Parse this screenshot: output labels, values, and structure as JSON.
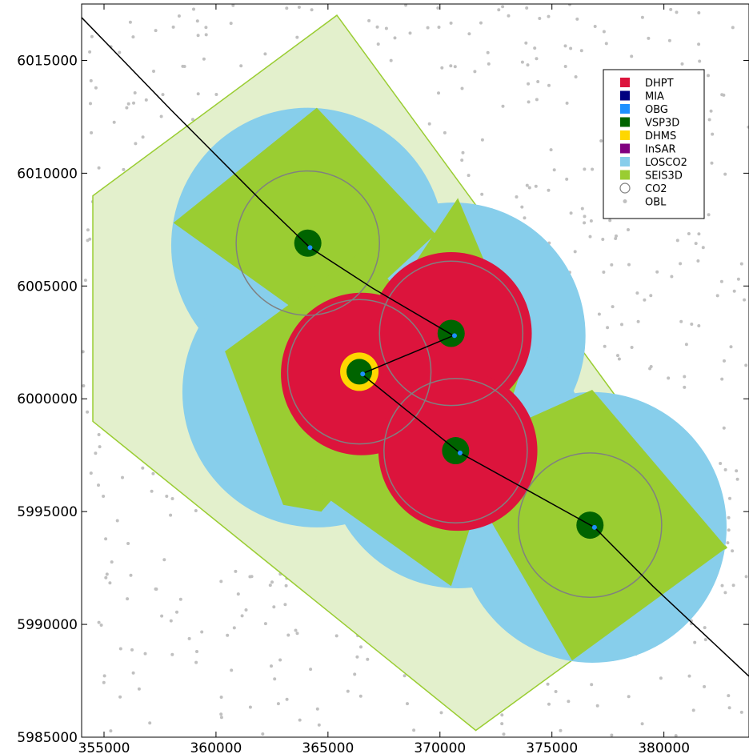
{
  "chart_data": {
    "type": "scatter",
    "title": "",
    "xlabel": "",
    "ylabel": "",
    "xlim": [
      354000,
      383800
    ],
    "ylim": [
      5985000,
      6017500
    ],
    "xticks": [
      355000,
      360000,
      365000,
      370000,
      375000,
      380000
    ],
    "yticks": [
      5985000,
      5990000,
      5995000,
      6000000,
      6005000,
      6010000,
      6015000
    ],
    "grid": false,
    "legend_position": "top-right",
    "colors": {
      "DHPT": "#dc143c",
      "MIA": "#000080",
      "OBG": "#1e90ff",
      "VSP3D": "#006400",
      "DHMS": "#ffd700",
      "InSAR": "#800080",
      "LOSCO2": "#87ceeb",
      "SEIS3D": "#9acd32",
      "CO2": "#808080",
      "OBL": "#c0c0c0"
    },
    "legend": [
      {
        "label": "DHPT",
        "marker": "square",
        "color": "#dc143c"
      },
      {
        "label": "MIA",
        "marker": "square",
        "color": "#000080"
      },
      {
        "label": "OBG",
        "marker": "square",
        "color": "#1e90ff"
      },
      {
        "label": "VSP3D",
        "marker": "square",
        "color": "#006400"
      },
      {
        "label": "DHMS",
        "marker": "square",
        "color": "#ffd700"
      },
      {
        "label": "InSAR",
        "marker": "square",
        "color": "#800080"
      },
      {
        "label": "LOSCO2",
        "marker": "square",
        "color": "#87ceeb"
      },
      {
        "label": "SEIS3D",
        "marker": "square",
        "color": "#9acd32"
      },
      {
        "label": "CO2",
        "marker": "circle",
        "color": "#808080"
      },
      {
        "label": "OBL",
        "marker": "dot",
        "color": "#c0c0c0"
      }
    ],
    "outer_polygon": [
      [
        365400,
        6017000
      ],
      [
        382800,
        5993400
      ],
      [
        371600,
        5985300
      ],
      [
        354500,
        5999000
      ],
      [
        354500,
        6009000
      ]
    ],
    "seis3d_polygons": [
      [
        [
          358100,
          6007800
        ],
        [
          364500,
          6012900
        ],
        [
          369800,
          6007300
        ],
        [
          365000,
          6002900
        ]
      ],
      [
        [
          360400,
          6002100
        ],
        [
          366600,
          6006600
        ],
        [
          370700,
          6001700
        ],
        [
          364700,
          5995000
        ],
        [
          363000,
          5995300
        ]
      ],
      [
        [
          365000,
          6000200
        ],
        [
          370800,
          6008900
        ],
        [
          373800,
          6001800
        ],
        [
          370500,
          5991700
        ],
        [
          364400,
          5996000
        ]
      ],
      [
        [
          370500,
          5997600
        ],
        [
          376800,
          6000400
        ],
        [
          382800,
          5993400
        ],
        [
          375900,
          5988400
        ]
      ]
    ],
    "losco2_circles": [
      {
        "x": 364100,
        "y": 6006800,
        "r": 6100
      },
      {
        "x": 364500,
        "y": 6000300,
        "r": 6000
      },
      {
        "x": 370600,
        "y": 6002800,
        "r": 5900
      },
      {
        "x": 370800,
        "y": 5997500,
        "r": 5900
      },
      {
        "x": 376800,
        "y": 5994300,
        "r": 6000
      }
    ],
    "dhpt_circles": [
      {
        "x": 366500,
        "y": 6001100,
        "r": 3600
      },
      {
        "x": 370500,
        "y": 6002900,
        "r": 3600
      },
      {
        "x": 370800,
        "y": 5997700,
        "r": 3550
      }
    ],
    "co2_circles": [
      {
        "x": 364100,
        "y": 6006900,
        "r": 3200
      },
      {
        "x": 366400,
        "y": 6001200,
        "r": 3200
      },
      {
        "x": 370500,
        "y": 6002900,
        "r": 3200
      },
      {
        "x": 370700,
        "y": 5997700,
        "r": 3200
      },
      {
        "x": 376700,
        "y": 5994400,
        "r": 3200
      }
    ],
    "vsp3d_points": [
      {
        "x": 364100,
        "y": 6006900
      },
      {
        "x": 366400,
        "y": 6001200
      },
      {
        "x": 370500,
        "y": 6002900
      },
      {
        "x": 370700,
        "y": 5997700
      },
      {
        "x": 376700,
        "y": 5994400
      }
    ],
    "dhms_points": [
      {
        "x": 366400,
        "y": 6001200
      }
    ],
    "obg_points": [
      {
        "x": 364200,
        "y": 6006700
      },
      {
        "x": 366550,
        "y": 6001100
      },
      {
        "x": 370650,
        "y": 6002800
      },
      {
        "x": 370900,
        "y": 5997600
      },
      {
        "x": 376900,
        "y": 5994300
      }
    ],
    "well_path": [
      [
        354000,
        6016900
      ],
      [
        358000,
        6012800
      ],
      [
        362000,
        6008800
      ],
      [
        364200,
        6006700
      ],
      [
        367000,
        6004900
      ],
      [
        370600,
        6002800
      ],
      [
        366500,
        6001100
      ],
      [
        368500,
        5999500
      ],
      [
        370900,
        5997600
      ],
      [
        374000,
        5995900
      ],
      [
        376900,
        5994300
      ],
      [
        379500,
        5991700
      ],
      [
        383800,
        5987700
      ]
    ],
    "obl_count": 700
  }
}
